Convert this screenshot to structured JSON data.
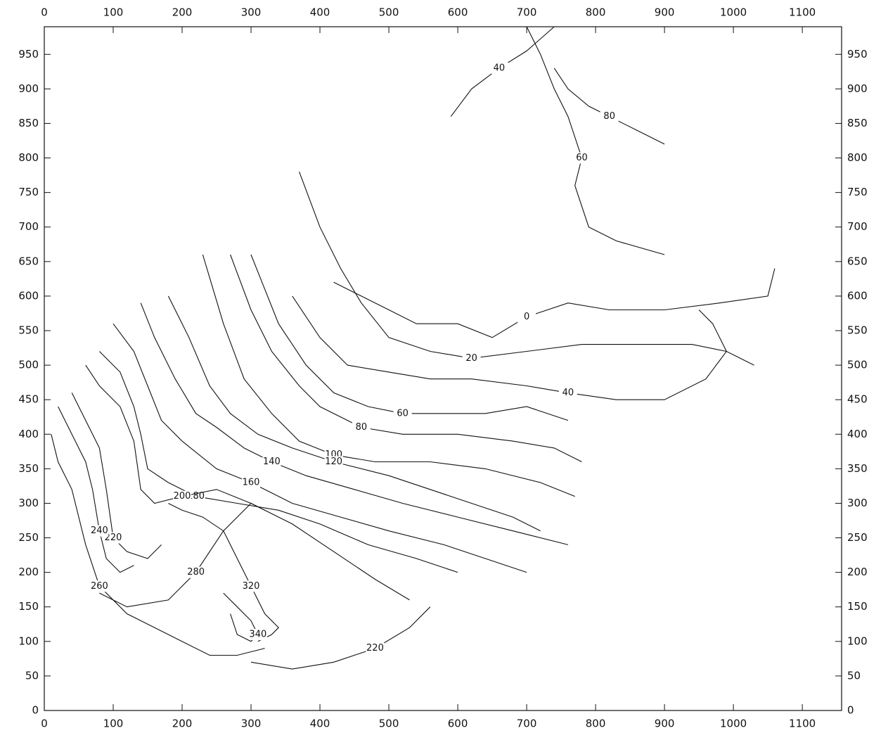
{
  "chart_data": {
    "type": "contour",
    "xlim": [
      0,
      1157
    ],
    "ylim": [
      0,
      990
    ],
    "xticks": [
      0,
      100,
      200,
      300,
      400,
      500,
      600,
      700,
      800,
      900,
      1000,
      1100
    ],
    "yticks": [
      0,
      50,
      100,
      150,
      200,
      250,
      300,
      350,
      400,
      450,
      500,
      550,
      600,
      650,
      700,
      750,
      800,
      850,
      900,
      950
    ],
    "color": "#111111",
    "contours": [
      {
        "level": 40,
        "x": [
          590,
          620,
          660,
          700,
          740
        ],
        "y": [
          860,
          900,
          930,
          955,
          990
        ]
      },
      {
        "level": 60,
        "x": [
          700,
          720,
          740,
          760,
          780,
          770,
          790,
          830,
          900
        ],
        "y": [
          990,
          950,
          900,
          860,
          800,
          760,
          700,
          680,
          660
        ]
      },
      {
        "level": 80,
        "x": [
          740,
          760,
          790,
          820,
          860,
          900
        ],
        "y": [
          930,
          900,
          875,
          860,
          840,
          820
        ]
      },
      {
        "level": 20,
        "x": [
          370,
          400,
          430,
          460,
          500,
          560,
          620,
          700,
          780,
          860,
          940,
          990,
          1030
        ],
        "y": [
          780,
          700,
          640,
          590,
          540,
          520,
          510,
          520,
          530,
          530,
          530,
          520,
          500
        ]
      },
      {
        "level": 0,
        "x": [
          420,
          460,
          500,
          540,
          600,
          650,
          700,
          760,
          820,
          900,
          980,
          1050,
          1060
        ],
        "y": [
          620,
          600,
          580,
          560,
          560,
          540,
          570,
          590,
          580,
          580,
          590,
          600,
          640
        ]
      },
      {
        "level": 40,
        "x": [
          360,
          400,
          440,
          500,
          560,
          620,
          700,
          760,
          830,
          900,
          960,
          990,
          970,
          950
        ],
        "y": [
          600,
          540,
          500,
          490,
          480,
          480,
          470,
          460,
          450,
          450,
          480,
          520,
          560,
          580
        ]
      },
      {
        "level": 60,
        "x": [
          300,
          340,
          380,
          420,
          470,
          520,
          580,
          640,
          700,
          760
        ],
        "y": [
          660,
          560,
          500,
          460,
          440,
          430,
          430,
          430,
          440,
          420
        ]
      },
      {
        "level": 80,
        "x": [
          270,
          300,
          330,
          370,
          400,
          460,
          520,
          600,
          680,
          740,
          780
        ],
        "y": [
          660,
          580,
          520,
          470,
          440,
          410,
          400,
          400,
          390,
          380,
          360
        ]
      },
      {
        "level": 100,
        "x": [
          230,
          260,
          290,
          330,
          370,
          420,
          480,
          560,
          640,
          720,
          770
        ],
        "y": [
          660,
          560,
          480,
          430,
          390,
          370,
          360,
          360,
          350,
          330,
          310
        ]
      },
      {
        "level": 120,
        "x": [
          180,
          210,
          240,
          270,
          310,
          360,
          420,
          500,
          560,
          620,
          680,
          720
        ],
        "y": [
          600,
          540,
          470,
          430,
          400,
          380,
          360,
          340,
          320,
          300,
          280,
          260
        ]
      },
      {
        "level": 140,
        "x": [
          140,
          160,
          190,
          220,
          250,
          290,
          330,
          380,
          450,
          520,
          600,
          680,
          760
        ],
        "y": [
          590,
          540,
          480,
          430,
          410,
          380,
          360,
          340,
          320,
          300,
          280,
          260,
          240
        ]
      },
      {
        "level": 160,
        "x": [
          100,
          130,
          150,
          170,
          200,
          250,
          300,
          360,
          430,
          500,
          580,
          640,
          700
        ],
        "y": [
          560,
          520,
          470,
          420,
          390,
          350,
          330,
          300,
          280,
          260,
          240,
          220,
          200
        ]
      },
      {
        "level": 180,
        "x": [
          80,
          110,
          130,
          140,
          150,
          180,
          220,
          280,
          340,
          400,
          470,
          540,
          600
        ],
        "y": [
          520,
          490,
          440,
          400,
          350,
          330,
          310,
          300,
          290,
          270,
          240,
          220,
          200
        ]
      },
      {
        "level": 200,
        "x": [
          60,
          80,
          110,
          130,
          140,
          160,
          200,
          250,
          300,
          360,
          420,
          480,
          530
        ],
        "y": [
          500,
          470,
          440,
          390,
          320,
          300,
          310,
          320,
          300,
          270,
          230,
          190,
          160
        ]
      },
      {
        "level": 220,
        "x": [
          40,
          60,
          80,
          90,
          100,
          120,
          150,
          170
        ],
        "y": [
          460,
          420,
          380,
          320,
          250,
          230,
          220,
          240
        ]
      },
      {
        "level": 240,
        "x": [
          20,
          40,
          60,
          70,
          80,
          90,
          110,
          130
        ],
        "y": [
          440,
          400,
          360,
          320,
          260,
          220,
          200,
          210
        ]
      },
      {
        "level": 260,
        "x": [
          10,
          20,
          40,
          50,
          60,
          80,
          120,
          180,
          240,
          280,
          320
        ],
        "y": [
          400,
          360,
          320,
          280,
          240,
          180,
          140,
          110,
          80,
          80,
          90
        ]
      },
      {
        "level": 280,
        "x": [
          80,
          120,
          180,
          220,
          260,
          300,
          320
        ],
        "y": [
          170,
          150,
          160,
          200,
          260,
          300,
          290
        ]
      },
      {
        "level": 320,
        "x": [
          180,
          200,
          230,
          260,
          280,
          300,
          320,
          340,
          330,
          310
        ],
        "y": [
          300,
          290,
          280,
          260,
          220,
          180,
          140,
          120,
          110,
          100
        ]
      },
      {
        "level": 340,
        "x": [
          260,
          280,
          300,
          310,
          300,
          280,
          270
        ],
        "y": [
          170,
          150,
          130,
          110,
          100,
          110,
          140
        ]
      },
      {
        "level": 220,
        "x": [
          300,
          360,
          420,
          480,
          530,
          560
        ],
        "y": [
          70,
          60,
          70,
          90,
          120,
          150
        ]
      }
    ]
  }
}
